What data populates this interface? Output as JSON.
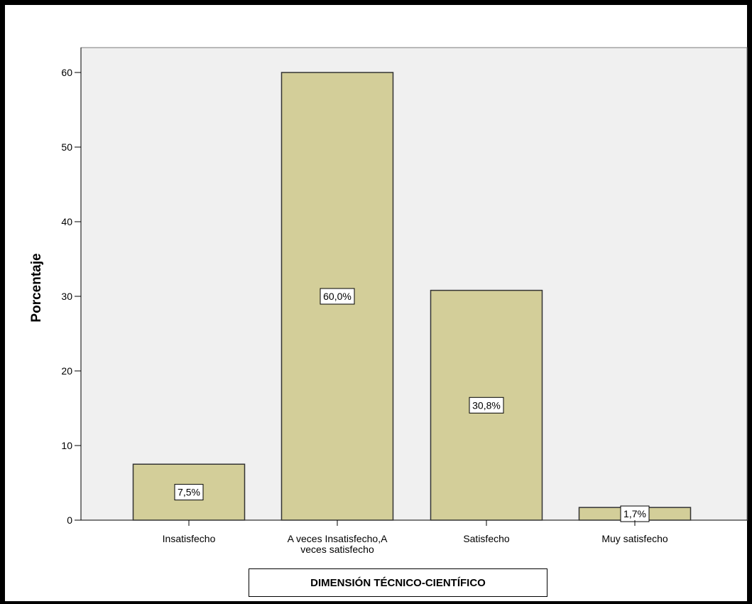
{
  "chart_data": {
    "type": "bar",
    "categories": [
      "Insatisfecho",
      "A veces Insatisfecho,A veces satisfecho",
      "Satisfecho",
      "Muy satisfecho"
    ],
    "category_lines": [
      [
        "Insatisfecho"
      ],
      [
        "A veces Insatisfecho,A",
        "veces satisfecho"
      ],
      [
        "Satisfecho"
      ],
      [
        "Muy satisfecho"
      ]
    ],
    "values": [
      7.5,
      60.0,
      30.8,
      1.7
    ],
    "data_labels": [
      "7,5%",
      "60,0%",
      "30,8%",
      "1,7%"
    ],
    "ylabel": "Porcentaje",
    "xlabel": "DIMENSIÓN TÉCNICO-CIENTÍFICO",
    "ylim": [
      0,
      60
    ],
    "yticks": [
      0,
      10,
      20,
      30,
      40,
      50,
      60
    ],
    "grid": false,
    "colors": {
      "bar": "#d3ce99",
      "bar_stroke": "#333333",
      "plot_bg": "#f0f0f0",
      "axis": "#000000"
    }
  }
}
